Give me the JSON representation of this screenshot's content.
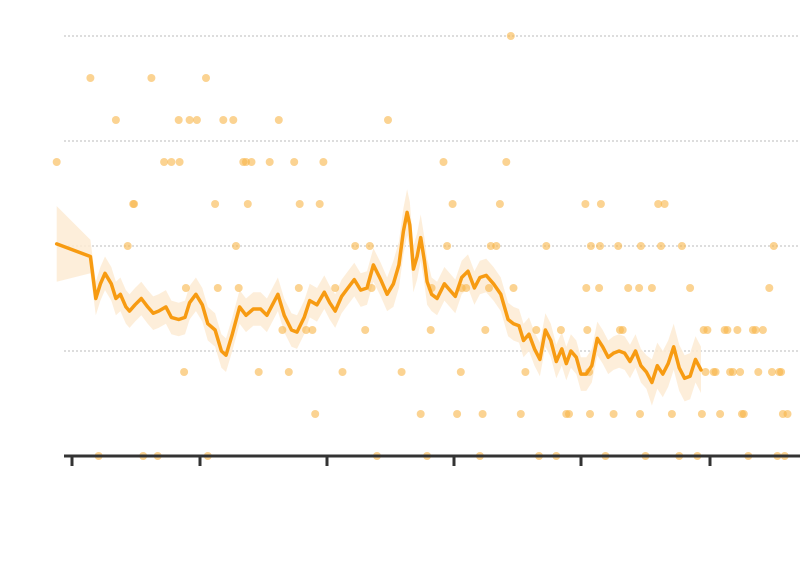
{
  "chart_data": {
    "type": "scatter",
    "title": "",
    "xlabel": "",
    "ylabel": "",
    "xlim": [
      0,
      800
    ],
    "ylim": [
      0,
      10
    ],
    "grid": "horizontal-dotted",
    "y_gridlines": [
      2.5,
      5,
      7.5,
      10
    ],
    "x_ticks": [
      0,
      128,
      255,
      382,
      509,
      638
    ],
    "tick_labels": [],
    "colors": {
      "points": "#f9b54a",
      "line": "#f79b12",
      "band": "#fdebd3",
      "axis": "#333333",
      "grid": "#bbbbbb"
    },
    "points": [
      [
        -8,
        7
      ],
      [
        29,
        9
      ],
      [
        38,
        0
      ],
      [
        57,
        8
      ],
      [
        70,
        5
      ],
      [
        76,
        6
      ],
      [
        77,
        6
      ],
      [
        87,
        0
      ],
      [
        96,
        9
      ],
      [
        103,
        0
      ],
      [
        110,
        7
      ],
      [
        118,
        7
      ],
      [
        126,
        8
      ],
      [
        127,
        7
      ],
      [
        132,
        2
      ],
      [
        134,
        4
      ],
      [
        138,
        8
      ],
      [
        146,
        8
      ],
      [
        156,
        9
      ],
      [
        158,
        0
      ],
      [
        166,
        6
      ],
      [
        169,
        4
      ],
      [
        175,
        8
      ],
      [
        186,
        8
      ],
      [
        189,
        5
      ],
      [
        192,
        4
      ],
      [
        197,
        7
      ],
      [
        200,
        7
      ],
      [
        202,
        6
      ],
      [
        206,
        7
      ],
      [
        214,
        2
      ],
      [
        226,
        7
      ],
      [
        236,
        8
      ],
      [
        240,
        3
      ],
      [
        247,
        2
      ],
      [
        253,
        7
      ],
      [
        258,
        4
      ],
      [
        259,
        6
      ],
      [
        266,
        3
      ],
      [
        273,
        3
      ],
      [
        276,
        1
      ],
      [
        281,
        6
      ],
      [
        285,
        7
      ],
      [
        298,
        4
      ],
      [
        306,
        2
      ],
      [
        320,
        5
      ],
      [
        331,
        3
      ],
      [
        336,
        5
      ],
      [
        338,
        4
      ],
      [
        344,
        0
      ],
      [
        356,
        8
      ],
      [
        371,
        2
      ],
      [
        392,
        1
      ],
      [
        399,
        0
      ],
      [
        403,
        3
      ],
      [
        404,
        4
      ],
      [
        417,
        7
      ],
      [
        421,
        5
      ],
      [
        427,
        6
      ],
      [
        432,
        1
      ],
      [
        436,
        2
      ],
      [
        437,
        4
      ],
      [
        442,
        4
      ],
      [
        457,
        0
      ],
      [
        460,
        1
      ],
      [
        463,
        3
      ],
      [
        467,
        4
      ],
      [
        469,
        5
      ],
      [
        475,
        5
      ],
      [
        479,
        6
      ],
      [
        486,
        7
      ],
      [
        491,
        10
      ],
      [
        494,
        4
      ],
      [
        502,
        1
      ],
      [
        507,
        2
      ],
      [
        519,
        3
      ],
      [
        522,
        0
      ],
      [
        530,
        5
      ],
      [
        541,
        0
      ],
      [
        546,
        3
      ],
      [
        552,
        1
      ],
      [
        555,
        1
      ],
      [
        573,
        6
      ],
      [
        574,
        4
      ],
      [
        575,
        3
      ],
      [
        577,
        2
      ],
      [
        578,
        1
      ],
      [
        579,
        5
      ],
      [
        588,
        4
      ],
      [
        589,
        5
      ],
      [
        590,
        6
      ],
      [
        595,
        0
      ],
      [
        604,
        1
      ],
      [
        609,
        5
      ],
      [
        611,
        3
      ],
      [
        614,
        3
      ],
      [
        620,
        4
      ],
      [
        632,
        4
      ],
      [
        633,
        1
      ],
      [
        634,
        5
      ],
      [
        639,
        0
      ],
      [
        646,
        4
      ],
      [
        653,
        6
      ],
      [
        656,
        5
      ],
      [
        660,
        6
      ],
      [
        668,
        1
      ],
      [
        676,
        0
      ],
      [
        679,
        5
      ],
      [
        688,
        4
      ],
      [
        696,
        0
      ],
      [
        701,
        1
      ],
      [
        703,
        3
      ],
      [
        705,
        2
      ],
      [
        707,
        3
      ],
      [
        714,
        2
      ],
      [
        716,
        2
      ],
      [
        721,
        1
      ],
      [
        726,
        3
      ],
      [
        729,
        3
      ],
      [
        732,
        2
      ],
      [
        735,
        2
      ],
      [
        740,
        3
      ],
      [
        743,
        2
      ],
      [
        745,
        1
      ],
      [
        747,
        1
      ],
      [
        752,
        0
      ],
      [
        757,
        3
      ],
      [
        760,
        3
      ],
      [
        763,
        2
      ],
      [
        768,
        3
      ],
      [
        775,
        4
      ],
      [
        778,
        2
      ],
      [
        780,
        5
      ],
      [
        784,
        0
      ],
      [
        786,
        2
      ],
      [
        788,
        2
      ],
      [
        790,
        1
      ],
      [
        792,
        0
      ],
      [
        795,
        1
      ]
    ],
    "trend": [
      [
        -8,
        5.05
      ],
      [
        29,
        4.75
      ],
      [
        35,
        3.75
      ],
      [
        40,
        4.1
      ],
      [
        45,
        4.35
      ],
      [
        52,
        4.1
      ],
      [
        57,
        3.75
      ],
      [
        62,
        3.85
      ],
      [
        68,
        3.55
      ],
      [
        72,
        3.45
      ],
      [
        78,
        3.6
      ],
      [
        85,
        3.75
      ],
      [
        92,
        3.55
      ],
      [
        98,
        3.4
      ],
      [
        104,
        3.45
      ],
      [
        112,
        3.55
      ],
      [
        118,
        3.3
      ],
      [
        126,
        3.25
      ],
      [
        133,
        3.3
      ],
      [
        138,
        3.65
      ],
      [
        145,
        3.85
      ],
      [
        152,
        3.6
      ],
      [
        158,
        3.15
      ],
      [
        166,
        3.0
      ],
      [
        173,
        2.5
      ],
      [
        178,
        2.4
      ],
      [
        185,
        2.9
      ],
      [
        193,
        3.55
      ],
      [
        200,
        3.35
      ],
      [
        208,
        3.5
      ],
      [
        216,
        3.5
      ],
      [
        223,
        3.35
      ],
      [
        229,
        3.6
      ],
      [
        235,
        3.85
      ],
      [
        242,
        3.35
      ],
      [
        250,
        3.0
      ],
      [
        256,
        2.95
      ],
      [
        264,
        3.3
      ],
      [
        270,
        3.7
      ],
      [
        278,
        3.6
      ],
      [
        286,
        3.9
      ],
      [
        292,
        3.65
      ],
      [
        298,
        3.45
      ],
      [
        305,
        3.8
      ],
      [
        312,
        4.0
      ],
      [
        319,
        4.2
      ],
      [
        326,
        3.95
      ],
      [
        333,
        4.0
      ],
      [
        340,
        4.55
      ],
      [
        348,
        4.2
      ],
      [
        355,
        3.85
      ],
      [
        362,
        4.1
      ],
      [
        368,
        4.55
      ],
      [
        373,
        5.35
      ],
      [
        377,
        5.8
      ],
      [
        380,
        5.5
      ],
      [
        384,
        4.45
      ],
      [
        388,
        4.75
      ],
      [
        392,
        5.2
      ],
      [
        396,
        4.65
      ],
      [
        399,
        4.15
      ],
      [
        404,
        3.85
      ],
      [
        410,
        3.75
      ],
      [
        418,
        4.1
      ],
      [
        424,
        3.95
      ],
      [
        430,
        3.8
      ],
      [
        437,
        4.25
      ],
      [
        444,
        4.4
      ],
      [
        451,
        4.0
      ],
      [
        457,
        4.25
      ],
      [
        464,
        4.3
      ],
      [
        472,
        4.1
      ],
      [
        480,
        3.85
      ],
      [
        488,
        3.25
      ],
      [
        494,
        3.15
      ],
      [
        500,
        3.1
      ],
      [
        505,
        2.75
      ],
      [
        511,
        2.9
      ],
      [
        517,
        2.55
      ],
      [
        523,
        2.3
      ],
      [
        529,
        3.0
      ],
      [
        535,
        2.75
      ],
      [
        541,
        2.25
      ],
      [
        547,
        2.55
      ],
      [
        552,
        2.2
      ],
      [
        557,
        2.5
      ],
      [
        563,
        2.35
      ],
      [
        568,
        1.95
      ],
      [
        574,
        1.95
      ],
      [
        580,
        2.15
      ],
      [
        586,
        2.8
      ],
      [
        592,
        2.6
      ],
      [
        598,
        2.35
      ],
      [
        604,
        2.45
      ],
      [
        610,
        2.5
      ],
      [
        616,
        2.45
      ],
      [
        622,
        2.25
      ],
      [
        628,
        2.5
      ],
      [
        634,
        2.15
      ],
      [
        640,
        2.0
      ],
      [
        646,
        1.75
      ],
      [
        652,
        2.15
      ],
      [
        658,
        1.95
      ],
      [
        664,
        2.2
      ],
      [
        670,
        2.6
      ],
      [
        676,
        2.1
      ],
      [
        682,
        1.85
      ],
      [
        688,
        1.9
      ],
      [
        694,
        2.3
      ],
      [
        700,
        2.05
      ]
    ]
  }
}
